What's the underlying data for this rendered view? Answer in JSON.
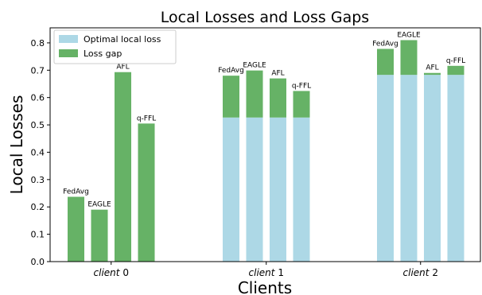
{
  "chart_data": {
    "type": "bar",
    "stacked": true,
    "title": "Local Losses and Loss Gaps",
    "xlabel": "Clients",
    "ylabel": "Local Losses",
    "ylim": [
      0,
      0.855
    ],
    "yticks": [
      "0.0",
      "0.1",
      "0.2",
      "0.3",
      "0.4",
      "0.5",
      "0.6",
      "0.7",
      "0.8"
    ],
    "grid": false,
    "legend_position": "top-left",
    "categories": [
      "client 0",
      "client 1",
      "client 2"
    ],
    "category_label_prefix": "client",
    "category_label_suffix": [
      "0",
      "1",
      "2"
    ],
    "methods": [
      "FedAvg",
      "EAGLE",
      "AFL",
      "q-FFL"
    ],
    "series": [
      {
        "name": "Optimal local loss",
        "color": "#add8e6",
        "values": [
          [
            0.0,
            0.0,
            0.0,
            0.0
          ],
          [
            0.527,
            0.527,
            0.527,
            0.527
          ],
          [
            0.683,
            0.683,
            0.683,
            0.683
          ]
        ]
      },
      {
        "name": "Loss gap",
        "color": "#66b266",
        "values": [
          [
            0.237,
            0.19,
            0.693,
            0.505
          ],
          [
            0.153,
            0.172,
            0.143,
            0.097
          ],
          [
            0.095,
            0.127,
            0.007,
            0.033
          ]
        ]
      }
    ]
  }
}
